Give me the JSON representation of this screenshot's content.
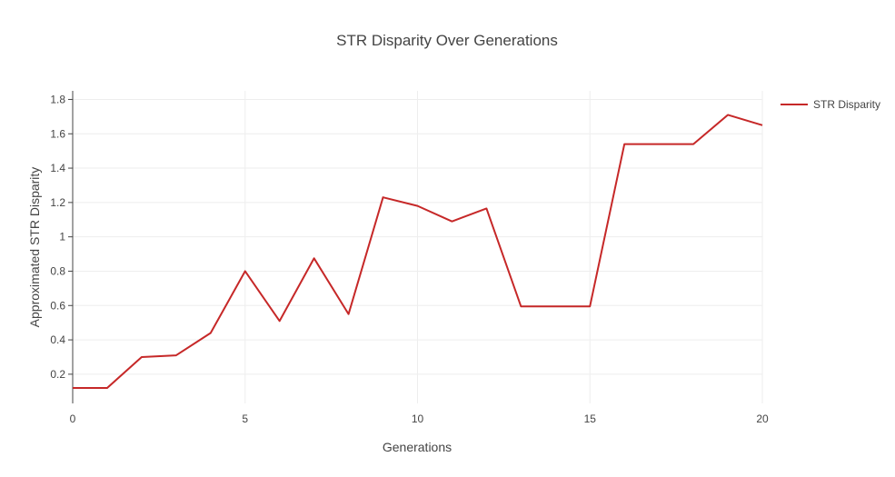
{
  "chart_data": {
    "type": "line",
    "title": "STR Disparity Over Generations",
    "xlabel": "Generations",
    "ylabel": "Approximated STR Disparity",
    "xlim": [
      0,
      20
    ],
    "ylim": [
      0.03,
      1.85
    ],
    "xticks": [
      0,
      5,
      10,
      15,
      20
    ],
    "yticks": [
      0.2,
      0.4,
      0.6,
      0.8,
      1,
      1.2,
      1.4,
      1.6,
      1.8
    ],
    "grid": true,
    "legend_position": "top-right",
    "series": [
      {
        "name": "STR Disparity",
        "color": "#c62828",
        "x": [
          0,
          1,
          2,
          3,
          4,
          5,
          6,
          7,
          8,
          9,
          10,
          11,
          12,
          13,
          14,
          15,
          16,
          17,
          18,
          19,
          20
        ],
        "y": [
          0.12,
          0.12,
          0.3,
          0.31,
          0.44,
          0.8,
          0.51,
          0.875,
          0.55,
          1.23,
          1.18,
          1.09,
          1.165,
          0.595,
          0.595,
          0.595,
          1.54,
          1.54,
          1.54,
          1.71,
          1.65
        ]
      }
    ]
  }
}
